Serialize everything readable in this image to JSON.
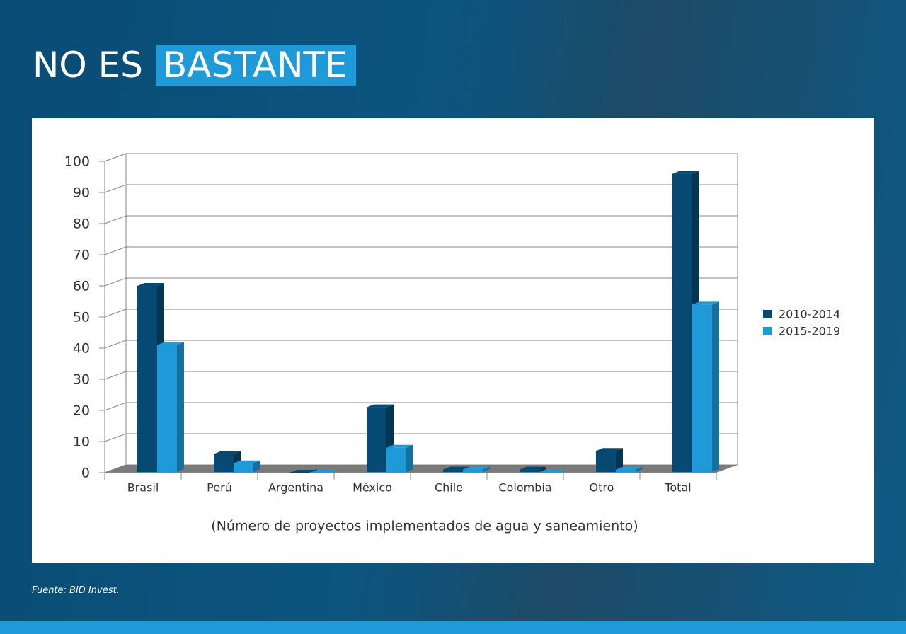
{
  "header": {
    "title": "NO ES",
    "highlight": "BASTANTE"
  },
  "source": "Fuente: BID Invest.",
  "chart_data": {
    "type": "bar3d",
    "x_label": "(Número de proyectos implementados de agua y saneamiento)",
    "categories": [
      "Brasil",
      "Perú",
      "Argentina",
      "México",
      "Chile",
      "Colombia",
      "Otro",
      "Total"
    ],
    "series": [
      {
        "name": "2010-2014",
        "color": "#064a73",
        "values": [
          60,
          6,
          0,
          21,
          1,
          1,
          7,
          96
        ]
      },
      {
        "name": "2015-2019",
        "color": "#1f9ad9",
        "values": [
          41,
          3,
          0,
          8,
          1,
          0,
          1,
          54
        ]
      }
    ],
    "ylim": [
      0,
      100
    ],
    "yticks": [
      0,
      10,
      20,
      30,
      40,
      50,
      60,
      70,
      80,
      90,
      100
    ],
    "grid": true,
    "legend": "right"
  }
}
